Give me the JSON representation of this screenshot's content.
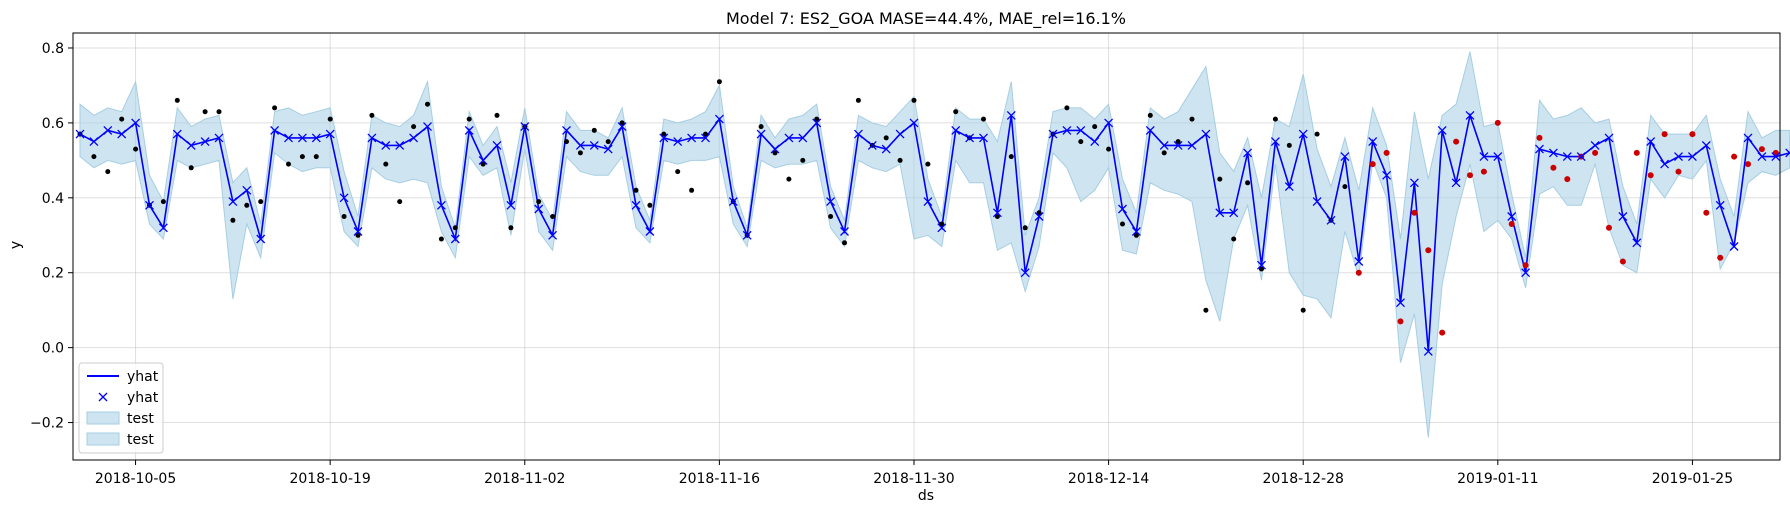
{
  "chart_data": {
    "type": "line",
    "title": "Model 7: ES2_GOA MASE=44.4%, MAE_rel=16.1%",
    "xlabel": "ds",
    "ylabel": "y",
    "x_start": "2018-10-01",
    "x_end": "2019-01-31",
    "ylim": [
      -0.3,
      0.84
    ],
    "x_ticks": [
      "2018-10-05",
      "2018-10-19",
      "2018-11-02",
      "2018-11-16",
      "2018-11-30",
      "2018-12-14",
      "2018-12-28",
      "2019-01-11",
      "2019-01-25"
    ],
    "y_ticks": [
      -0.2,
      0.0,
      0.2,
      0.4,
      0.6,
      0.8
    ],
    "y_tick_labels": [
      "−0.2",
      "0.0",
      "0.2",
      "0.4",
      "0.6",
      "0.8"
    ],
    "grid": true,
    "legend_position": "bottom-left",
    "legend": [
      {
        "label": "yhat",
        "kind": "line"
      },
      {
        "label": "yhat",
        "kind": "marker"
      },
      {
        "label": "test",
        "kind": "band"
      },
      {
        "label": "test",
        "kind": "band"
      }
    ],
    "colors": {
      "forecast": "#0000ff",
      "band": "#a6cee3",
      "actual": "#000000",
      "test_point": "#cc0000"
    },
    "series": [
      {
        "name": "yhat",
        "values": [
          0.57,
          0.55,
          0.58,
          0.57,
          0.6,
          0.38,
          0.32,
          0.57,
          0.54,
          0.55,
          0.56,
          0.39,
          0.42,
          0.29,
          0.58,
          0.56,
          0.56,
          0.56,
          0.57,
          0.4,
          0.31,
          0.56,
          0.54,
          0.54,
          0.56,
          0.59,
          0.38,
          0.29,
          0.58,
          0.5,
          0.54,
          0.38,
          0.59,
          0.37,
          0.3,
          0.58,
          0.54,
          0.54,
          0.53,
          0.59,
          0.38,
          0.31,
          0.56,
          0.55,
          0.56,
          0.56,
          0.61,
          0.39,
          0.3,
          0.57,
          0.53,
          0.56,
          0.56,
          0.6,
          0.39,
          0.31,
          0.57,
          0.54,
          0.53,
          0.57,
          0.6,
          0.39,
          0.32,
          0.58,
          0.56,
          0.56,
          0.36,
          0.62,
          0.2,
          0.35,
          0.57,
          0.58,
          0.58,
          0.55,
          0.6,
          0.37,
          0.31,
          0.58,
          0.54,
          0.54,
          0.54,
          0.57,
          0.36,
          0.36,
          0.52,
          0.22,
          0.55,
          0.43,
          0.57,
          0.39,
          0.34,
          0.51,
          0.23,
          0.55,
          0.46,
          0.12,
          0.44,
          -0.01,
          0.58,
          0.44,
          0.62,
          0.51,
          0.51,
          0.35,
          0.2,
          0.53,
          0.52,
          0.51,
          0.51,
          0.54,
          0.56,
          0.35,
          0.28,
          0.55,
          0.49,
          0.51,
          0.51,
          0.54,
          0.38,
          0.27,
          0.56,
          0.51,
          0.51,
          0.52
        ]
      },
      {
        "name": "test",
        "lower": [
          0.51,
          0.48,
          0.5,
          0.49,
          0.5,
          0.33,
          0.29,
          0.5,
          0.48,
          0.49,
          0.5,
          0.13,
          0.33,
          0.24,
          0.52,
          0.49,
          0.47,
          0.48,
          0.48,
          0.31,
          0.27,
          0.48,
          0.45,
          0.44,
          0.45,
          0.44,
          0.31,
          0.24,
          0.51,
          0.46,
          0.48,
          0.3,
          0.53,
          0.31,
          0.26,
          0.51,
          0.47,
          0.46,
          0.46,
          0.51,
          0.32,
          0.28,
          0.5,
          0.49,
          0.5,
          0.5,
          0.51,
          0.33,
          0.27,
          0.5,
          0.48,
          0.49,
          0.49,
          0.5,
          0.32,
          0.27,
          0.5,
          0.48,
          0.47,
          0.49,
          0.29,
          0.3,
          0.27,
          0.5,
          0.44,
          0.44,
          0.26,
          0.28,
          0.15,
          0.27,
          0.52,
          0.48,
          0.39,
          0.42,
          0.48,
          0.26,
          0.25,
          0.44,
          0.42,
          0.41,
          0.39,
          0.18,
          0.07,
          0.29,
          0.38,
          0.18,
          0.49,
          0.2,
          0.14,
          0.13,
          0.08,
          0.31,
          0.19,
          0.5,
          0.4,
          -0.04,
          0.09,
          -0.24,
          0.17,
          0.35,
          0.49,
          0.31,
          0.34,
          0.29,
          0.16,
          0.41,
          0.43,
          0.38,
          0.38,
          0.49,
          0.32,
          0.22,
          0.2,
          0.45,
          0.4,
          0.46,
          0.45,
          0.5,
          0.21,
          0.28,
          0.44,
          0.47,
          0.46,
          0.48
        ],
        "upper": [
          0.65,
          0.62,
          0.64,
          0.63,
          0.71,
          0.46,
          0.39,
          0.64,
          0.59,
          0.61,
          0.62,
          0.44,
          0.48,
          0.33,
          0.63,
          0.64,
          0.62,
          0.63,
          0.64,
          0.47,
          0.35,
          0.62,
          0.6,
          0.59,
          0.62,
          0.71,
          0.43,
          0.32,
          0.63,
          0.54,
          0.59,
          0.44,
          0.64,
          0.41,
          0.34,
          0.63,
          0.58,
          0.58,
          0.56,
          0.64,
          0.43,
          0.34,
          0.61,
          0.6,
          0.61,
          0.63,
          0.7,
          0.43,
          0.32,
          0.62,
          0.56,
          0.61,
          0.62,
          0.65,
          0.43,
          0.34,
          0.62,
          0.6,
          0.59,
          0.63,
          0.67,
          0.45,
          0.35,
          0.64,
          0.61,
          0.61,
          0.55,
          0.71,
          0.3,
          0.4,
          0.63,
          0.64,
          0.64,
          0.61,
          0.65,
          0.45,
          0.36,
          0.64,
          0.61,
          0.63,
          0.69,
          0.75,
          0.52,
          0.47,
          0.56,
          0.4,
          0.61,
          0.59,
          0.73,
          0.53,
          0.43,
          0.56,
          0.42,
          0.64,
          0.54,
          0.29,
          0.63,
          0.45,
          0.62,
          0.65,
          0.79,
          0.59,
          0.6,
          0.41,
          0.24,
          0.66,
          0.61,
          0.62,
          0.64,
          0.6,
          0.61,
          0.43,
          0.33,
          0.62,
          0.57,
          0.57,
          0.57,
          0.62,
          0.45,
          0.35,
          0.63,
          0.56,
          0.58,
          0.58
        ]
      },
      {
        "name": "actual",
        "x": [
          "2018-10-01",
          "2018-10-02",
          "2018-10-03",
          "2018-10-04",
          "2018-10-05",
          "2018-10-06",
          "2018-10-07",
          "2018-10-08",
          "2018-10-09",
          "2018-10-10",
          "2018-10-11",
          "2018-10-12",
          "2018-10-13",
          "2018-10-14",
          "2018-10-15",
          "2018-10-16",
          "2018-10-17",
          "2018-10-18",
          "2018-10-19",
          "2018-10-20",
          "2018-10-21",
          "2018-10-22",
          "2018-10-23",
          "2018-10-24",
          "2018-10-25",
          "2018-10-26",
          "2018-10-27",
          "2018-10-28",
          "2018-10-29",
          "2018-10-30",
          "2018-10-31",
          "2018-11-01",
          "2018-11-02",
          "2018-11-03",
          "2018-11-04",
          "2018-11-05",
          "2018-11-06",
          "2018-11-07",
          "2018-11-08",
          "2018-11-09",
          "2018-11-10",
          "2018-11-11",
          "2018-11-12",
          "2018-11-13",
          "2018-11-14",
          "2018-11-15",
          "2018-11-16",
          "2018-11-17",
          "2018-11-18",
          "2018-11-19",
          "2018-11-20",
          "2018-11-21",
          "2018-11-22",
          "2018-11-23",
          "2018-11-24",
          "2018-11-25",
          "2018-11-26",
          "2018-11-27",
          "2018-11-28",
          "2018-11-29",
          "2018-11-30",
          "2018-12-01",
          "2018-12-02",
          "2018-12-03",
          "2018-12-04",
          "2018-12-05",
          "2018-12-06",
          "2018-12-07",
          "2018-12-08",
          "2018-12-09",
          "2018-12-10",
          "2018-12-11",
          "2018-12-12",
          "2018-12-13",
          "2018-12-14",
          "2018-12-15",
          "2018-12-16",
          "2018-12-17",
          "2018-12-18",
          "2018-12-19",
          "2018-12-20",
          "2018-12-21",
          "2018-12-22",
          "2018-12-23",
          "2018-12-24",
          "2018-12-25",
          "2018-12-26",
          "2018-12-27",
          "2018-12-28",
          "2018-12-29",
          "2018-12-30",
          "2018-12-31"
        ],
        "values": [
          0.57,
          0.51,
          0.47,
          0.61,
          0.53,
          0.38,
          0.39,
          0.66,
          0.48,
          0.63,
          0.63,
          0.34,
          0.38,
          0.39,
          0.64,
          0.49,
          0.51,
          0.51,
          0.61,
          0.35,
          0.3,
          0.62,
          0.49,
          0.39,
          0.59,
          0.65,
          0.29,
          0.32,
          0.61,
          0.49,
          0.62,
          0.32,
          0.59,
          0.39,
          0.35,
          0.55,
          0.52,
          0.58,
          0.55,
          0.6,
          0.42,
          0.38,
          0.57,
          0.47,
          0.42,
          0.57,
          0.71,
          0.39,
          0.3,
          0.59,
          0.52,
          0.45,
          0.5,
          0.61,
          0.35,
          0.28,
          0.66,
          0.54,
          0.56,
          0.5,
          0.66,
          0.49,
          0.33,
          0.63,
          0.56,
          0.61,
          0.35,
          0.51,
          0.32,
          0.36,
          0.57,
          0.64,
          0.55,
          0.59,
          0.53,
          0.33,
          0.3,
          0.62,
          0.52,
          0.55,
          0.61,
          0.1,
          0.45,
          0.29,
          0.44,
          0.21,
          0.61,
          0.54,
          0.1,
          0.57,
          0.34,
          0.43
        ]
      },
      {
        "name": "test_points",
        "x": [
          "2019-01-01",
          "2019-01-02",
          "2019-01-03",
          "2019-01-04",
          "2019-01-05",
          "2019-01-06",
          "2019-01-07",
          "2019-01-08",
          "2019-01-09",
          "2019-01-10",
          "2019-01-11",
          "2019-01-12",
          "2019-01-13",
          "2019-01-14",
          "2019-01-15",
          "2019-01-16",
          "2019-01-17",
          "2019-01-18",
          "2019-01-19",
          "2019-01-20",
          "2019-01-21",
          "2019-01-22",
          "2019-01-23",
          "2019-01-24",
          "2019-01-25",
          "2019-01-26",
          "2019-01-27",
          "2019-01-28",
          "2019-01-29",
          "2019-01-30",
          "2019-01-31"
        ],
        "values": [
          0.2,
          0.49,
          0.52,
          0.07,
          0.36,
          0.26,
          0.04,
          0.55,
          0.46,
          0.47,
          0.6,
          0.33,
          0.22,
          0.56,
          0.48,
          0.45,
          0.51,
          0.52,
          0.32,
          0.23,
          0.52,
          0.46,
          0.57,
          0.47,
          0.57,
          0.36,
          0.24,
          0.51,
          0.49,
          0.53,
          0.52
        ]
      }
    ]
  }
}
